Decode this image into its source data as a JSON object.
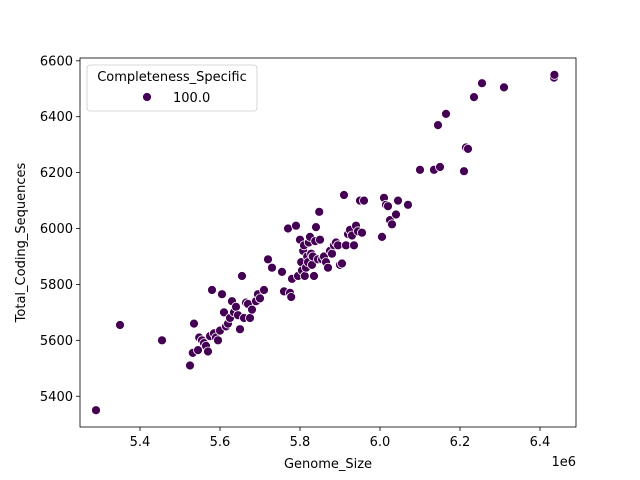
{
  "chart_data": {
    "type": "scatter",
    "xlabel": "Genome_Size",
    "ylabel": "Total_Coding_Sequences",
    "x_offset_label": "1e6",
    "x_scale": 1000000,
    "xlim": [
      5250000,
      6490000
    ],
    "ylim": [
      5290000,
      6610000
    ],
    "ylim_units": [
      5290,
      6610
    ],
    "x_ticks": [
      5400000,
      5600000,
      5800000,
      6000000,
      6200000,
      6400000
    ],
    "x_tick_labels": [
      "5.4",
      "5.6",
      "5.8",
      "6.0",
      "6.2",
      "6.4"
    ],
    "y_ticks": [
      5400,
      5600,
      5800,
      6000,
      6200,
      6400,
      6600
    ],
    "y_tick_labels": [
      "5400",
      "5600",
      "5800",
      "6000",
      "6200",
      "6400",
      "6600"
    ],
    "legend": {
      "title": "Completeness_Specific",
      "placement": "upper-left",
      "entries": [
        {
          "label": "100.0",
          "color": "#440154"
        }
      ]
    },
    "marker_color": "#440154",
    "marker_edge_color": "#ffffff",
    "series": [
      {
        "x": [
          5290000,
          5350000,
          5455000,
          5525000,
          5532000,
          5535000,
          5545000,
          5548000,
          5555000,
          5560000,
          5565000,
          5570000,
          5575000,
          5580000,
          5585000,
          5590000,
          5595000,
          5600000,
          5605000,
          5610000,
          5615000,
          5620000,
          5625000,
          5630000,
          5635000,
          5640000,
          5645000,
          5650000,
          5655000,
          5660000,
          5665000,
          5670000,
          5675000,
          5680000,
          5690000,
          5695000,
          5700000,
          5710000,
          5720000,
          5730000,
          5755000,
          5760000,
          5770000,
          5775000,
          5778000,
          5780000,
          5790000,
          5795000,
          5800000,
          5803000,
          5805000,
          5808000,
          5810000,
          5812000,
          5815000,
          5818000,
          5820000,
          5822000,
          5825000,
          5828000,
          5830000,
          5832000,
          5835000,
          5838000,
          5840000,
          5845000,
          5848000,
          5850000,
          5855000,
          5860000,
          5865000,
          5870000,
          5875000,
          5880000,
          5885000,
          5890000,
          5895000,
          5900000,
          5905000,
          5910000,
          5915000,
          5920000,
          5925000,
          5930000,
          5935000,
          5940000,
          5945000,
          5950000,
          5955000,
          5960000,
          6005000,
          6010000,
          6015000,
          6020000,
          6025000,
          6030000,
          6040000,
          6045000,
          6070000,
          6100000,
          6135000,
          6145000,
          6150000,
          6165000,
          6210000,
          6215000,
          6220000,
          6235000,
          6255000,
          6310000,
          6435000,
          6436000
        ],
        "y": [
          5350,
          5655,
          5600,
          5510,
          5555,
          5660,
          5565,
          5610,
          5600,
          5590,
          5580,
          5560,
          5615,
          5780,
          5625,
          5610,
          5600,
          5635,
          5765,
          5700,
          5650,
          5660,
          5680,
          5740,
          5700,
          5720,
          5690,
          5640,
          5830,
          5680,
          5735,
          5730,
          5680,
          5710,
          5740,
          5765,
          5750,
          5780,
          5890,
          5860,
          5845,
          5775,
          6000,
          5770,
          5755,
          5820,
          6010,
          5830,
          5960,
          5880,
          5850,
          5920,
          5940,
          5830,
          5860,
          5900,
          5880,
          5950,
          5970,
          5910,
          5870,
          5900,
          5830,
          5955,
          6005,
          5890,
          6060,
          5960,
          5890,
          5900,
          5880,
          5860,
          5920,
          5910,
          5940,
          5950,
          5940,
          5870,
          5875,
          6120,
          5940,
          5980,
          5995,
          5975,
          5940,
          6010,
          5990,
          6100,
          5985,
          6100,
          5970,
          6110,
          6085,
          6080,
          6030,
          6015,
          6050,
          6100,
          6085,
          6210,
          6210,
          6370,
          6220,
          6410,
          6205,
          6290,
          6285,
          6470,
          6520,
          6505,
          6540,
          6550
        ]
      }
    ]
  }
}
